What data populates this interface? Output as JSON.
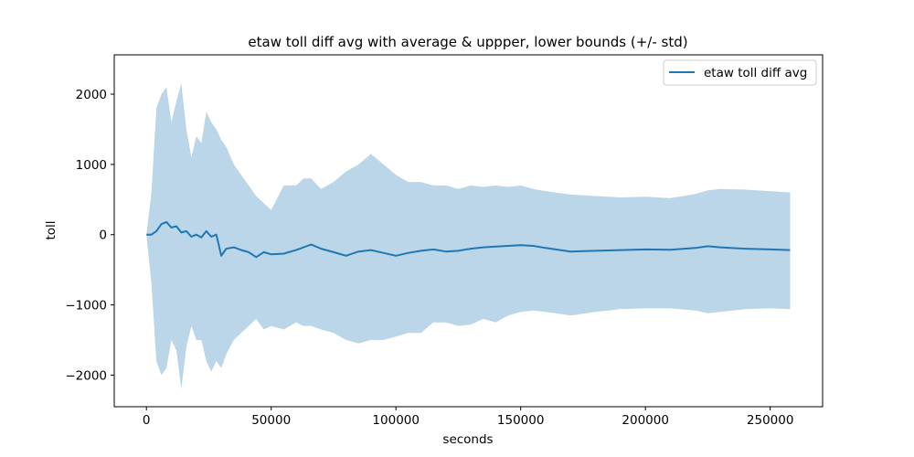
{
  "chart_data": {
    "type": "line",
    "title": "etaw toll diff avg with average & uppper, lower bounds (+/- std)",
    "xlabel": "seconds",
    "ylabel": "toll",
    "xlim": [
      -12900,
      271000
    ],
    "ylim": [
      -2450,
      2560
    ],
    "xticks": [
      0,
      50000,
      100000,
      150000,
      200000,
      250000
    ],
    "xtick_labels": [
      "0",
      "50000",
      "100000",
      "150000",
      "200000",
      "250000"
    ],
    "yticks": [
      -2000,
      -1000,
      0,
      1000,
      2000
    ],
    "ytick_labels": [
      "−2000",
      "−1000",
      "0",
      "1000",
      "2000"
    ],
    "legend": {
      "location": "top-right",
      "entries": [
        "etaw toll diff avg"
      ]
    },
    "grid": false,
    "colors": {
      "line": "#1f77b4",
      "band": "#1f77b4",
      "band_alpha": 0.3
    },
    "series": [
      {
        "name": "etaw toll diff avg",
        "x": [
          0,
          2000,
          4000,
          6000,
          8000,
          10000,
          12000,
          14000,
          16000,
          18000,
          20000,
          22000,
          24000,
          26000,
          28000,
          30000,
          32000,
          35000,
          38000,
          41000,
          44000,
          47000,
          50000,
          55000,
          60000,
          63000,
          66000,
          70000,
          75000,
          80000,
          85000,
          90000,
          95000,
          100000,
          105000,
          110000,
          115000,
          120000,
          125000,
          130000,
          135000,
          140000,
          145000,
          150000,
          155000,
          160000,
          170000,
          180000,
          190000,
          200000,
          210000,
          220000,
          225000,
          230000,
          240000,
          250000,
          258000
        ],
        "y": [
          0,
          0,
          50,
          150,
          180,
          100,
          120,
          30,
          50,
          -30,
          0,
          -40,
          50,
          -30,
          0,
          -300,
          -200,
          -180,
          -220,
          -250,
          -320,
          -250,
          -280,
          -270,
          -220,
          -180,
          -140,
          -200,
          -250,
          -300,
          -240,
          -220,
          -260,
          -300,
          -260,
          -230,
          -210,
          -240,
          -230,
          -200,
          -180,
          -170,
          -160,
          -150,
          -160,
          -190,
          -240,
          -230,
          -220,
          -210,
          -215,
          -190,
          -165,
          -180,
          -200,
          -210,
          -220
        ],
        "upper": [
          0,
          600,
          1800,
          2000,
          2100,
          1600,
          1900,
          2150,
          1500,
          1100,
          1400,
          1300,
          1750,
          1600,
          1500,
          1350,
          1250,
          1000,
          850,
          700,
          550,
          450,
          350,
          700,
          700,
          800,
          800,
          650,
          750,
          900,
          1000,
          1150,
          1000,
          850,
          750,
          750,
          700,
          700,
          650,
          700,
          680,
          700,
          680,
          700,
          650,
          620,
          570,
          550,
          530,
          540,
          520,
          580,
          630,
          650,
          640,
          620,
          600
        ],
        "lower": [
          0,
          -700,
          -1800,
          -2000,
          -1900,
          -1500,
          -1650,
          -2200,
          -1600,
          -1300,
          -1500,
          -1500,
          -1800,
          -1950,
          -1800,
          -1900,
          -1700,
          -1500,
          -1400,
          -1300,
          -1200,
          -1350,
          -1300,
          -1350,
          -1250,
          -1300,
          -1300,
          -1350,
          -1400,
          -1500,
          -1550,
          -1500,
          -1500,
          -1450,
          -1400,
          -1400,
          -1250,
          -1250,
          -1300,
          -1280,
          -1200,
          -1250,
          -1150,
          -1100,
          -1080,
          -1100,
          -1150,
          -1100,
          -1060,
          -1050,
          -1050,
          -1080,
          -1120,
          -1100,
          -1060,
          -1050,
          -1060
        ]
      }
    ]
  }
}
